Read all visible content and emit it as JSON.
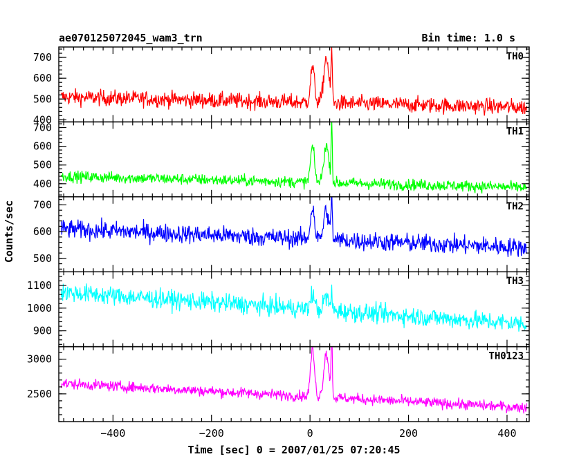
{
  "title_left": "ae070125072045_wam3_trn",
  "title_right": "Bin time: 1.0 s",
  "chart_data": {
    "type": "line",
    "xlabel": "Time [sec] 0 = 2007/01/25 07:20:45",
    "ylabel": "Counts/sec",
    "xlim": [
      -510,
      445
    ],
    "x_ticks": [
      -400,
      -200,
      0,
      200,
      400
    ],
    "x_minor_step": 20,
    "grid": false,
    "panels": [
      {
        "label": "TH0",
        "color": "#ff0000",
        "ylim": [
          390,
          750
        ],
        "y_ticks": [
          400,
          500,
          600,
          700
        ],
        "y_minor_step": 20,
        "baseline_start": 510,
        "baseline_end": 460,
        "noise": 35,
        "peaks": [
          {
            "t": 5,
            "h": 170,
            "w": 4
          },
          {
            "t": 33,
            "h": 220,
            "w": 5
          },
          {
            "t": 44,
            "h": 260,
            "w": 1.2
          }
        ]
      },
      {
        "label": "TH1",
        "color": "#00ff00",
        "ylim": [
          330,
          730
        ],
        "y_ticks": [
          400,
          500,
          600,
          700
        ],
        "y_minor_step": 20,
        "baseline_start": 440,
        "baseline_end": 380,
        "noise": 28,
        "peaks": [
          {
            "t": 5,
            "h": 190,
            "w": 4
          },
          {
            "t": 33,
            "h": 200,
            "w": 5
          },
          {
            "t": 44,
            "h": 330,
            "w": 1.2
          }
        ]
      },
      {
        "label": "TH2",
        "color": "#0000ff",
        "ylim": [
          450,
          730
        ],
        "y_ticks": [
          500,
          600,
          700
        ],
        "y_minor_step": 20,
        "baseline_start": 610,
        "baseline_end": 540,
        "noise": 32,
        "peaks": [
          {
            "t": 5,
            "h": 120,
            "w": 4
          },
          {
            "t": 33,
            "h": 110,
            "w": 5
          },
          {
            "t": 44,
            "h": 180,
            "w": 1.2
          }
        ]
      },
      {
        "label": "TH3",
        "color": "#00ffff",
        "ylim": [
          830,
          1160
        ],
        "y_ticks": [
          900,
          1000,
          1100
        ],
        "y_minor_step": 20,
        "baseline_start": 1070,
        "baseline_end": 930,
        "noise": 38,
        "peaks": [
          {
            "t": 5,
            "h": 70,
            "w": 4
          },
          {
            "t": 33,
            "h": 60,
            "w": 5
          },
          {
            "t": 44,
            "h": 80,
            "w": 1.2
          }
        ]
      },
      {
        "label": "TH0123",
        "color": "#ff00ff",
        "ylim": [
          2100,
          3180
        ],
        "y_ticks": [
          2500,
          3000
        ],
        "y_minor_step": 100,
        "baseline_start": 2650,
        "baseline_end": 2300,
        "noise": 70,
        "peaks": [
          {
            "t": 5,
            "h": 680,
            "w": 4
          },
          {
            "t": 33,
            "h": 640,
            "w": 5
          },
          {
            "t": 44,
            "h": 1000,
            "w": 1.2
          }
        ]
      }
    ]
  }
}
